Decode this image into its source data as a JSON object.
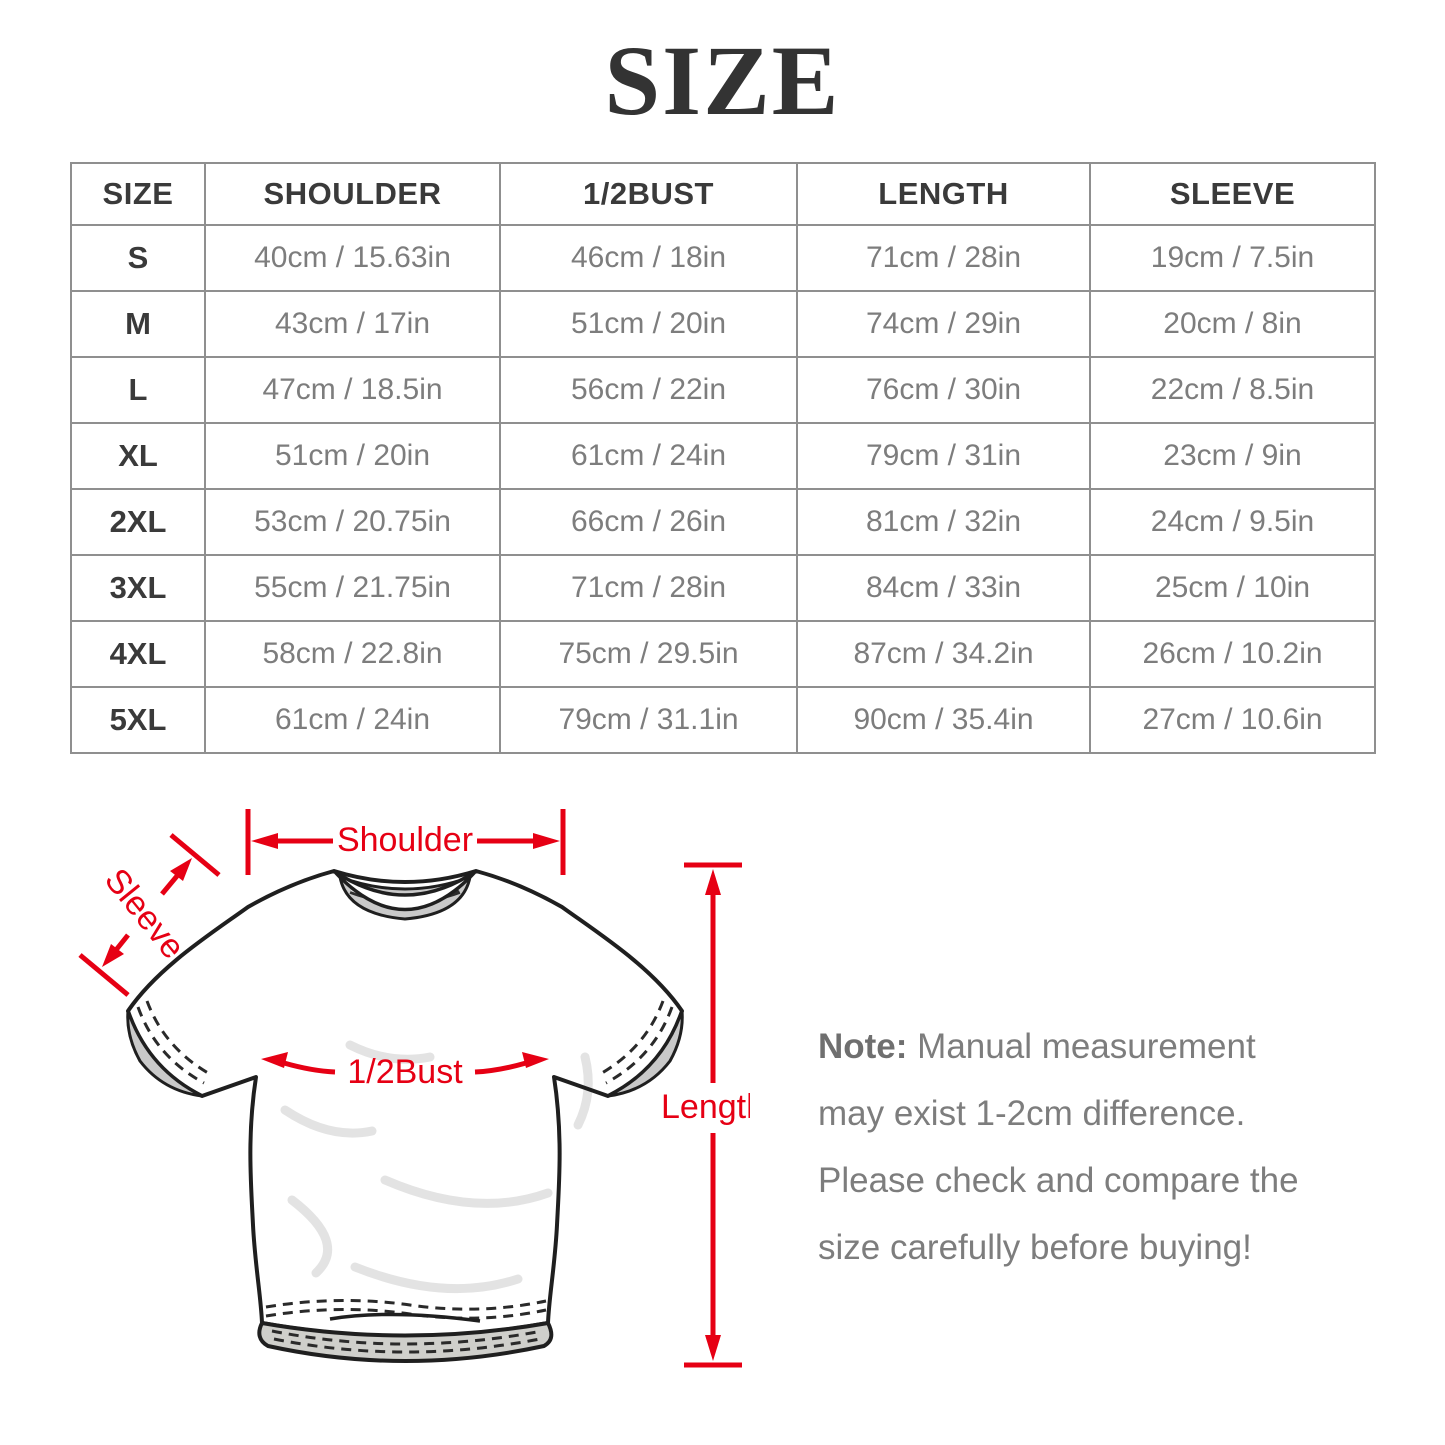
{
  "colors": {
    "accent_red": "#e60014",
    "table_border": "#8f8f8f",
    "title_text": "#333333",
    "table_header_text": "#3a3a3a",
    "table_value_text": "#7d7d7d",
    "note_text": "#7d7d7d"
  },
  "title": "SIZE",
  "size_table": {
    "columns": [
      "SIZE",
      "SHOULDER",
      "1/2BUST",
      "LENGTH",
      "SLEEVE"
    ],
    "rows": [
      [
        "S",
        "40cm / 15.63in",
        "46cm / 18in",
        "71cm / 28in",
        "19cm / 7.5in"
      ],
      [
        "M",
        "43cm / 17in",
        "51cm / 20in",
        "74cm / 29in",
        "20cm / 8in"
      ],
      [
        "L",
        "47cm / 18.5in",
        "56cm / 22in",
        "76cm / 30in",
        "22cm / 8.5in"
      ],
      [
        "XL",
        "51cm / 20in",
        "61cm / 24in",
        "79cm / 31in",
        "23cm / 9in"
      ],
      [
        "2XL",
        "53cm / 20.75in",
        "66cm / 26in",
        "81cm / 32in",
        "24cm / 9.5in"
      ],
      [
        "3XL",
        "55cm / 21.75in",
        "71cm / 28in",
        "84cm / 33in",
        "25cm / 10in"
      ],
      [
        "4XL",
        "58cm / 22.8in",
        "75cm / 29.5in",
        "87cm / 34.2in",
        "26cm / 10.2in"
      ],
      [
        "5XL",
        "61cm / 24in",
        "79cm / 31.1in",
        "90cm / 35.4in",
        "27cm / 10.6in"
      ]
    ]
  },
  "diagram": {
    "labels": {
      "shoulder": "Shoulder",
      "sleeve": "Sleeve",
      "half_bust": "1/2Bust",
      "length": "Length"
    }
  },
  "note": {
    "label": "Note:",
    "text": "Manual measurement may exist 1-2cm difference. Please check and compare the size carefully before buying!"
  }
}
